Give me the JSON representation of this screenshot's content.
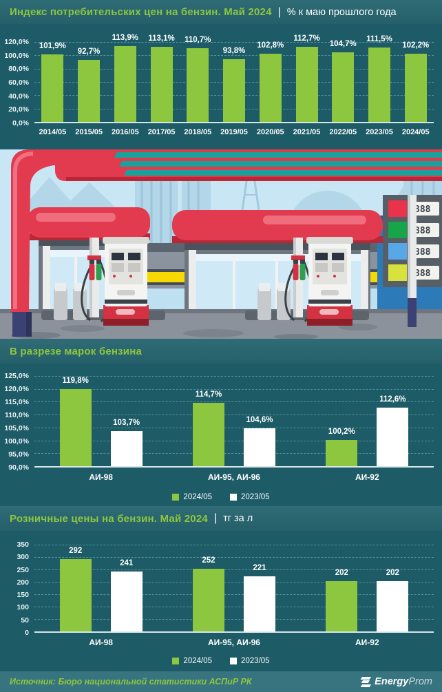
{
  "header": {
    "title_green": "Индекс потребительских цен на бензин. Май 2024",
    "separator": "|",
    "title_white": "% к маю прошлого года"
  },
  "sections": {
    "brands_title": "В разрезе марок бензина",
    "retail_title_green": "Розничные цены на бензин. Май 2024",
    "retail_separator": "|",
    "retail_title_white": "тг за л"
  },
  "legend": {
    "items": [
      {
        "label": "2024/05",
        "color": "#8dc63f"
      },
      {
        "label": "2023/05",
        "color": "#ffffff"
      }
    ]
  },
  "footer": {
    "source": "Источник: Бюро национальной статистики АСПиР РК",
    "logo_bold": "Energy",
    "logo_light": "Prom"
  },
  "colors": {
    "page_background": "#1d5b66",
    "band_background": "#2b6771",
    "accent_green": "#8dc63f",
    "bar_white": "#ffffff",
    "gridline": "#7cc3d0",
    "canopy_red": "#e23a4e",
    "stripe_teal": "#16a39b"
  },
  "illustration": {
    "price_display_text": "888"
  },
  "chart_data": [
    {
      "type": "bar",
      "title": "Индекс потребительских цен на бензин. Май 2024",
      "ylabel": "% к маю прошлого года",
      "categories": [
        "2014/05",
        "2015/05",
        "2016/05",
        "2017/05",
        "2018/05",
        "2019/05",
        "2020/05",
        "2021/05",
        "2022/05",
        "2023/05",
        "2024/05"
      ],
      "values": [
        101.9,
        92.7,
        113.9,
        113.1,
        110.7,
        93.8,
        102.8,
        112.7,
        104.7,
        111.5,
        102.2
      ],
      "labels": [
        "101,9%",
        "92,7%",
        "113,9%",
        "113,1%",
        "110,7%",
        "93,8%",
        "102,8%",
        "112,7%",
        "104,7%",
        "111,5%",
        "102,2%"
      ],
      "bar_color": "#8dc63f",
      "ylim": [
        0,
        120
      ],
      "ystep": 20,
      "tick_labels": [
        "0,0%",
        "20,0%",
        "40,0%",
        "60,0%",
        "80,0%",
        "100,0%",
        "120,0%"
      ],
      "grid": true,
      "legend_position": "none"
    },
    {
      "type": "bar",
      "title": "В разрезе марок бензина",
      "categories": [
        "АИ-98",
        "АИ-95, АИ-96",
        "АИ-92"
      ],
      "series": [
        {
          "name": "2024/05",
          "color": "#8dc63f",
          "values": [
            119.8,
            114.7,
            100.2
          ],
          "labels": [
            "119,8%",
            "114,7%",
            "100,2%"
          ]
        },
        {
          "name": "2023/05",
          "color": "#ffffff",
          "values": [
            103.7,
            104.6,
            112.6
          ],
          "labels": [
            "103,7%",
            "104,6%",
            "112,6%"
          ]
        }
      ],
      "ylim": [
        90,
        125
      ],
      "ystep": 5,
      "tick_labels": [
        "90,0%",
        "95,0%",
        "100,0%",
        "105,0%",
        "110,0%",
        "115,0%",
        "120,0%",
        "125,0%"
      ],
      "grid": true,
      "legend_position": "bottom"
    },
    {
      "type": "bar",
      "title": "Розничные цены на бензин. Май 2024",
      "ylabel": "тг за л",
      "categories": [
        "АИ-98",
        "АИ-95, АИ-96",
        "АИ-92"
      ],
      "series": [
        {
          "name": "2024/05",
          "color": "#8dc63f",
          "values": [
            292,
            252,
            202
          ],
          "labels": [
            "292",
            "252",
            "202"
          ]
        },
        {
          "name": "2023/05",
          "color": "#ffffff",
          "values": [
            241,
            221,
            202
          ],
          "labels": [
            "241",
            "221",
            "202"
          ]
        }
      ],
      "ylim": [
        0,
        350
      ],
      "ystep": 50,
      "tick_labels": [
        "0",
        "50",
        "100",
        "150",
        "200",
        "250",
        "300",
        "350"
      ],
      "grid": true,
      "legend_position": "bottom"
    }
  ]
}
